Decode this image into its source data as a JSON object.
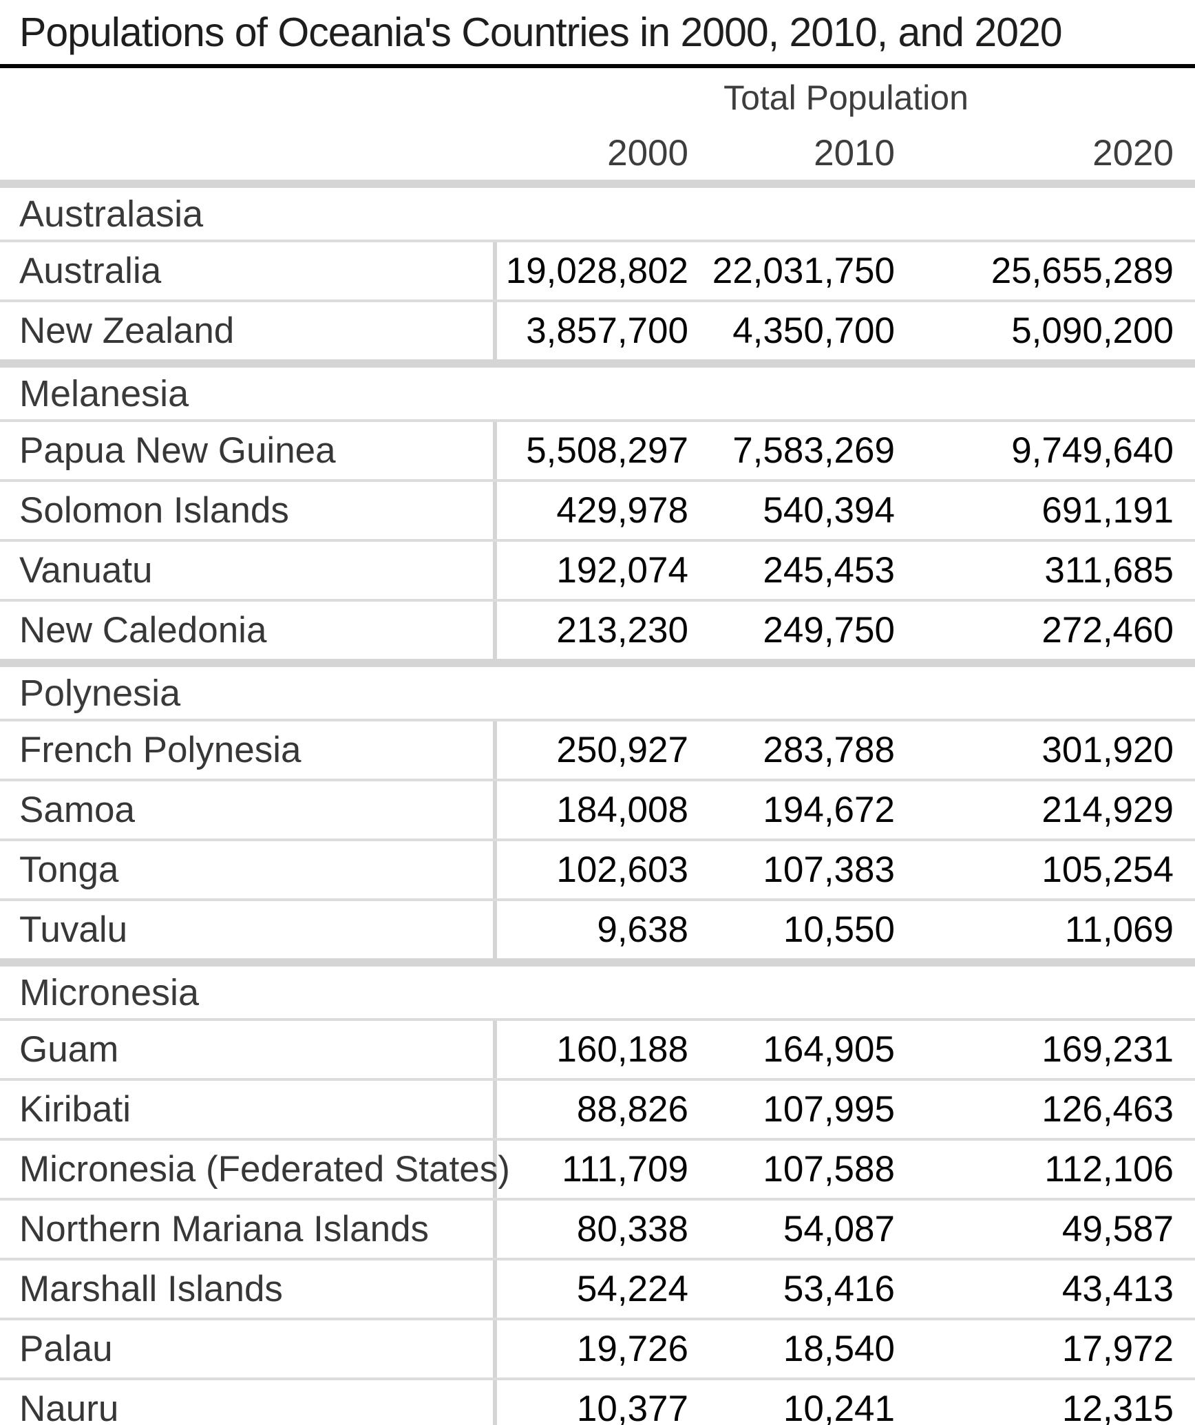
{
  "title": "Populations of Oceania's Countries in 2000, 2010, and 2020",
  "table": {
    "group_header": "Total Population",
    "year_columns": [
      "2000",
      "2010",
      "2020"
    ],
    "sections": [
      {
        "name": "Australasia",
        "rows": [
          {
            "country": "Australia",
            "values": [
              "19,028,802",
              "22,031,750",
              "25,655,289"
            ]
          },
          {
            "country": "New Zealand",
            "values": [
              "3,857,700",
              "4,350,700",
              "5,090,200"
            ]
          }
        ]
      },
      {
        "name": "Melanesia",
        "rows": [
          {
            "country": "Papua New Guinea",
            "values": [
              "5,508,297",
              "7,583,269",
              "9,749,640"
            ]
          },
          {
            "country": "Solomon Islands",
            "values": [
              "429,978",
              "540,394",
              "691,191"
            ]
          },
          {
            "country": "Vanuatu",
            "values": [
              "192,074",
              "245,453",
              "311,685"
            ]
          },
          {
            "country": "New Caledonia",
            "values": [
              "213,230",
              "249,750",
              "272,460"
            ]
          }
        ]
      },
      {
        "name": "Polynesia",
        "rows": [
          {
            "country": "French Polynesia",
            "values": [
              "250,927",
              "283,788",
              "301,920"
            ]
          },
          {
            "country": "Samoa",
            "values": [
              "184,008",
              "194,672",
              "214,929"
            ]
          },
          {
            "country": "Tonga",
            "values": [
              "102,603",
              "107,383",
              "105,254"
            ]
          },
          {
            "country": "Tuvalu",
            "values": [
              "9,638",
              "10,550",
              "11,069"
            ]
          }
        ]
      },
      {
        "name": "Micronesia",
        "rows": [
          {
            "country": "Guam",
            "values": [
              "160,188",
              "164,905",
              "169,231"
            ]
          },
          {
            "country": "Kiribati",
            "values": [
              "88,826",
              "107,995",
              "126,463"
            ]
          },
          {
            "country": "Micronesia (Federated States)",
            "values": [
              "111,709",
              "107,588",
              "112,106"
            ]
          },
          {
            "country": "Northern Mariana Islands",
            "values": [
              "80,338",
              "54,087",
              "49,587"
            ]
          },
          {
            "country": "Marshall Islands",
            "values": [
              "54,224",
              "53,416",
              "43,413"
            ]
          },
          {
            "country": "Palau",
            "values": [
              "19,726",
              "18,540",
              "17,972"
            ]
          },
          {
            "country": "Nauru",
            "values": [
              "10,377",
              "10,241",
              "12,315"
            ]
          }
        ]
      }
    ]
  },
  "colors": {
    "background": "#ffffff",
    "title_text": "#1e1e1e",
    "header_text": "#3d3d3d",
    "section_text": "#3a3a3a",
    "country_text": "#373737",
    "value_text": "#050505",
    "top_rule": "#050505",
    "thin_line": "#dcdcdc",
    "thick_line": "#d5d5d5",
    "column_divider": "#d5d5d5"
  },
  "chart_data": {
    "type": "table",
    "title": "Populations of Oceania's Countries in 2000, 2010, and 2020",
    "column_group_label": "Total Population",
    "columns": [
      2000,
      2010,
      2020
    ],
    "sections": [
      {
        "name": "Australasia",
        "rows": [
          {
            "country": "Australia",
            "values": [
              19028802,
              22031750,
              25655289
            ]
          },
          {
            "country": "New Zealand",
            "values": [
              3857700,
              4350700,
              5090200
            ]
          }
        ]
      },
      {
        "name": "Melanesia",
        "rows": [
          {
            "country": "Papua New Guinea",
            "values": [
              5508297,
              7583269,
              9749640
            ]
          },
          {
            "country": "Solomon Islands",
            "values": [
              429978,
              540394,
              691191
            ]
          },
          {
            "country": "Vanuatu",
            "values": [
              192074,
              245453,
              311685
            ]
          },
          {
            "country": "New Caledonia",
            "values": [
              213230,
              249750,
              272460
            ]
          }
        ]
      },
      {
        "name": "Polynesia",
        "rows": [
          {
            "country": "French Polynesia",
            "values": [
              250927,
              283788,
              301920
            ]
          },
          {
            "country": "Samoa",
            "values": [
              184008,
              194672,
              214929
            ]
          },
          {
            "country": "Tonga",
            "values": [
              102603,
              107383,
              105254
            ]
          },
          {
            "country": "Tuvalu",
            "values": [
              9638,
              10550,
              11069
            ]
          }
        ]
      },
      {
        "name": "Micronesia",
        "rows": [
          {
            "country": "Guam",
            "values": [
              160188,
              164905,
              169231
            ]
          },
          {
            "country": "Kiribati",
            "values": [
              88826,
              107995,
              126463
            ]
          },
          {
            "country": "Micronesia (Federated States)",
            "values": [
              111709,
              107588,
              112106
            ]
          },
          {
            "country": "Northern Mariana Islands",
            "values": [
              80338,
              54087,
              49587
            ]
          },
          {
            "country": "Marshall Islands",
            "values": [
              54224,
              53416,
              43413
            ]
          },
          {
            "country": "Palau",
            "values": [
              19726,
              18540,
              17972
            ]
          },
          {
            "country": "Nauru",
            "values": [
              10377,
              10241,
              12315
            ]
          }
        ]
      }
    ]
  }
}
